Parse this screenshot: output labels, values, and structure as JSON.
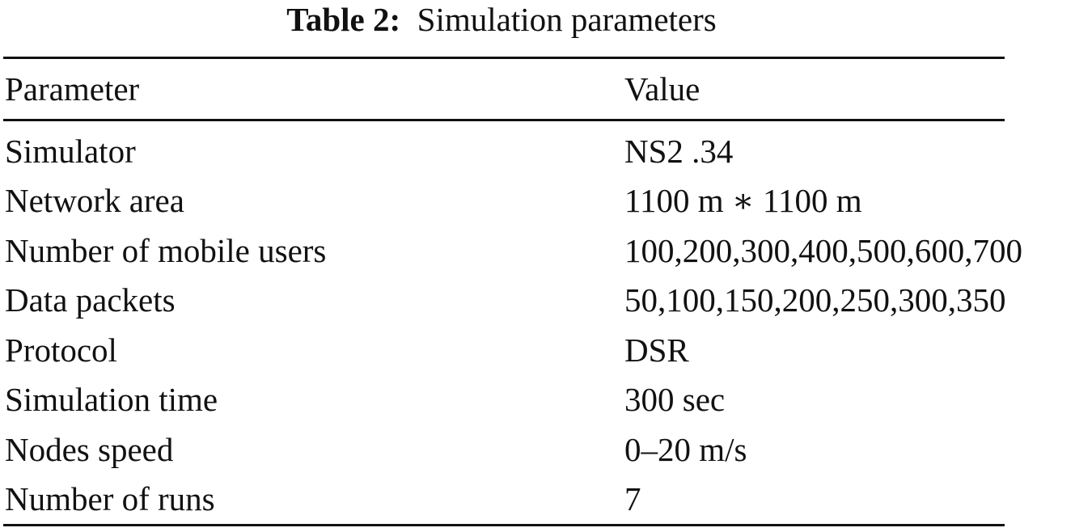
{
  "caption": {
    "label": "Table 2:",
    "title": "Simulation parameters"
  },
  "table": {
    "headers": [
      "Parameter",
      "Value"
    ],
    "rows": [
      [
        "Simulator",
        "NS2 .34"
      ],
      [
        "Network area",
        "1100 m ∗ 1100 m"
      ],
      [
        "Number of mobile users",
        "100,200,300,400,500,600,700"
      ],
      [
        "Data packets",
        "50,100,150,200,250,300,350"
      ],
      [
        "Protocol",
        "DSR"
      ],
      [
        "Simulation time",
        "300 sec"
      ],
      [
        "Nodes speed",
        "0–20 m/s"
      ],
      [
        "Number of runs",
        "7"
      ]
    ]
  }
}
